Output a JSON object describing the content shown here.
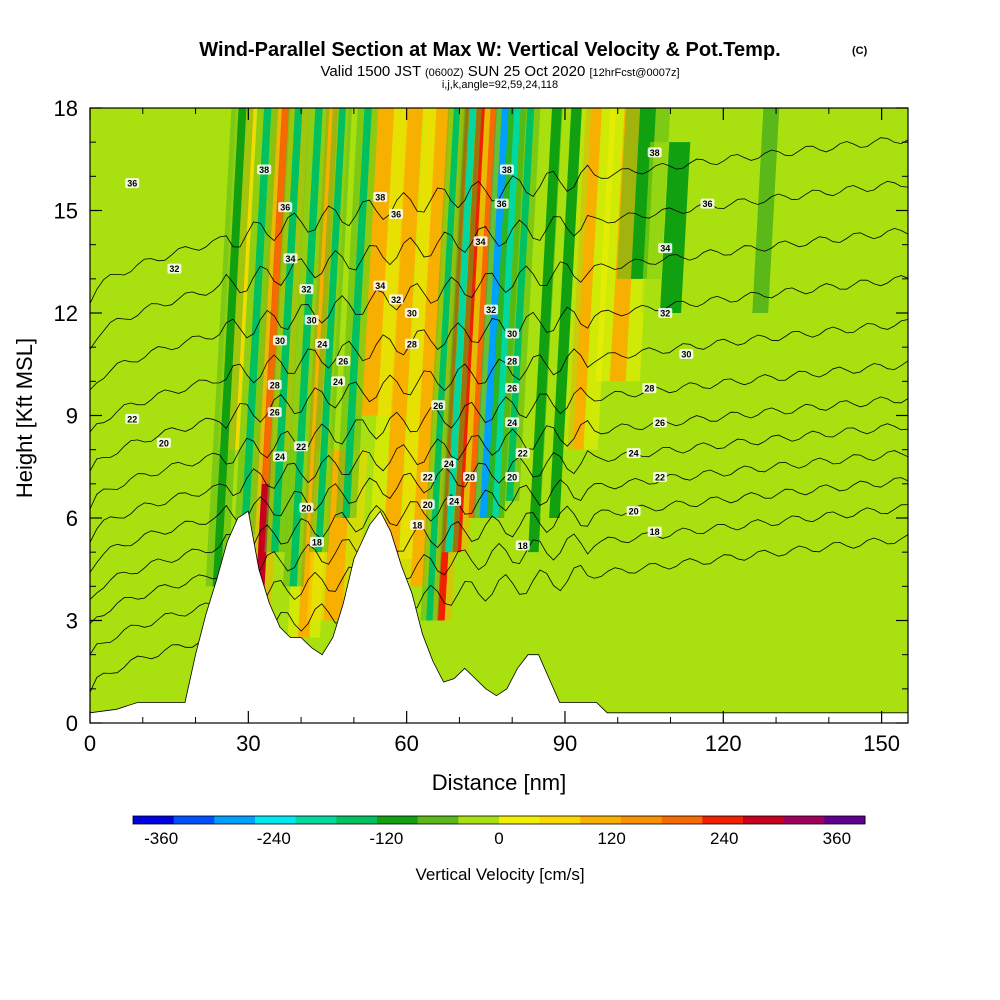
{
  "chart_data": {
    "type": "heatmap",
    "title": "Wind-Parallel Section at Max W: Vertical Velocity & Pot.Temp.",
    "title_mark": "(C)",
    "subtitle_main": "Valid 1500 JST",
    "subtitle_z": "(0600Z)",
    "subtitle_date": "SUN 25 Oct 2020",
    "subtitle_fcst": "[12hrFcst@0007z]",
    "params_line": "i,j,k,angle=92,59,24,118",
    "xlabel": "Distance [nm]",
    "ylabel": "Height [Kft MSL]",
    "xlim": [
      0,
      155
    ],
    "ylim": [
      0,
      18
    ],
    "x_ticks": [
      0,
      30,
      60,
      90,
      120,
      150
    ],
    "y_ticks": [
      0,
      3,
      6,
      9,
      12,
      15,
      18
    ],
    "colorbar": {
      "label": "Vertical Velocity [cm/s]",
      "ticks": [
        "-360",
        "-240",
        "-120",
        "0",
        "120",
        "240",
        "360"
      ],
      "tick_values": [
        -360,
        -240,
        -120,
        0,
        120,
        240,
        360
      ],
      "range": [
        -390,
        390
      ],
      "colors": [
        "#0000e0",
        "#0050ff",
        "#00a0ff",
        "#00e8f0",
        "#00d8a0",
        "#00c060",
        "#10a010",
        "#5ab818",
        "#a8e010",
        "#f0f000",
        "#f8d800",
        "#f8b000",
        "#f89000",
        "#f86a00",
        "#f02000",
        "#c80020",
        "#a00060",
        "#600090"
      ]
    },
    "terrain": [
      [
        0,
        0.3
      ],
      [
        5,
        0.4
      ],
      [
        9,
        0.6
      ],
      [
        18,
        0.6
      ],
      [
        20,
        2
      ],
      [
        22,
        3.2
      ],
      [
        24,
        4.2
      ],
      [
        26,
        5.3
      ],
      [
        28,
        6
      ],
      [
        30,
        6.2
      ],
      [
        32,
        4.5
      ],
      [
        34,
        3.5
      ],
      [
        36,
        2.8
      ],
      [
        38,
        2.5
      ],
      [
        40,
        2.5
      ],
      [
        42,
        2.2
      ],
      [
        44,
        2
      ],
      [
        46,
        2.5
      ],
      [
        48,
        3.5
      ],
      [
        50,
        4.8
      ],
      [
        53,
        5.8
      ],
      [
        55,
        6.2
      ],
      [
        57,
        5.6
      ],
      [
        59,
        4.6
      ],
      [
        61,
        3.8
      ],
      [
        63,
        2.6
      ],
      [
        65,
        1.8
      ],
      [
        67,
        1.2
      ],
      [
        69,
        1.3
      ],
      [
        71,
        1.6
      ],
      [
        73,
        1.3
      ],
      [
        75,
        1
      ],
      [
        77,
        0.8
      ],
      [
        79,
        1
      ],
      [
        81,
        1.6
      ],
      [
        83,
        2
      ],
      [
        85,
        2
      ],
      [
        87,
        1.3
      ],
      [
        89,
        0.6
      ],
      [
        96,
        0.6
      ],
      [
        98,
        0.3
      ],
      [
        155,
        0.3
      ]
    ],
    "updraft_bands": [
      {
        "x": 32,
        "w": 1.6,
        "y0": 3.2,
        "y1": 18,
        "value": 260
      },
      {
        "x": 33.2,
        "w": 1.1,
        "y0": 7,
        "y1": 18,
        "value": 200
      },
      {
        "x": 66.5,
        "w": 1.4,
        "y0": 3,
        "y1": 18,
        "value": 250
      },
      {
        "x": 69.5,
        "w": 1.6,
        "y0": 5,
        "y1": 18,
        "value": 220
      },
      {
        "x": 72.3,
        "w": 1.2,
        "y0": 6,
        "y1": 18,
        "value": 210
      },
      {
        "x": 40.5,
        "w": 2.2,
        "y0": 2.5,
        "y1": 18,
        "value": 90
      },
      {
        "x": 46,
        "w": 3.5,
        "y0": 3,
        "y1": 8,
        "value": 110
      },
      {
        "x": 57,
        "w": 3,
        "y0": 4.8,
        "y1": 18,
        "value": 90
      },
      {
        "x": 53,
        "w": 3,
        "y0": 9,
        "y1": 18,
        "value": 100
      },
      {
        "x": 62,
        "w": 2.5,
        "y0": 4,
        "y1": 18,
        "value": 110
      },
      {
        "x": 92,
        "w": 3,
        "y0": 8,
        "y1": 18,
        "value": 90
      },
      {
        "x": 100,
        "w": 3,
        "y0": 10,
        "y1": 18,
        "value": 90
      },
      {
        "x": 27,
        "w": 2,
        "y0": 8,
        "y1": 18,
        "value": 60
      },
      {
        "x": 37,
        "w": 2,
        "y0": 8,
        "y1": 18,
        "value": 60
      }
    ],
    "downdraft_bands": [
      {
        "x": 29.3,
        "w": 1.4,
        "y0": 5.5,
        "y1": 18,
        "value": -170
      },
      {
        "x": 35,
        "w": 1.4,
        "y0": 5,
        "y1": 18,
        "value": -150
      },
      {
        "x": 38.5,
        "w": 1.4,
        "y0": 4,
        "y1": 18,
        "value": -140
      },
      {
        "x": 43.3,
        "w": 1.3,
        "y0": 5,
        "y1": 18,
        "value": -150
      },
      {
        "x": 48.5,
        "w": 1.4,
        "y0": 6,
        "y1": 18,
        "value": -140
      },
      {
        "x": 64.3,
        "w": 1.2,
        "y0": 3,
        "y1": 18,
        "value": -170
      },
      {
        "x": 68,
        "w": 1.2,
        "y0": 5,
        "y1": 18,
        "value": -190
      },
      {
        "x": 74.5,
        "w": 1.3,
        "y0": 6,
        "y1": 18,
        "value": -300
      },
      {
        "x": 76.8,
        "w": 1.2,
        "y0": 6,
        "y1": 18,
        "value": -200
      },
      {
        "x": 79.5,
        "w": 1.3,
        "y0": 6.5,
        "y1": 18,
        "value": -170
      },
      {
        "x": 24,
        "w": 1.5,
        "y0": 4,
        "y1": 18,
        "value": -100
      },
      {
        "x": 84,
        "w": 2,
        "y0": 5,
        "y1": 18,
        "value": -90
      },
      {
        "x": 88,
        "w": 2,
        "y0": 6,
        "y1": 18,
        "value": -90
      },
      {
        "x": 104,
        "w": 3,
        "y0": 13,
        "y1": 18,
        "value": -100
      },
      {
        "x": 110,
        "w": 4,
        "y0": 12,
        "y1": 17,
        "value": -90
      },
      {
        "x": 127,
        "w": 3,
        "y0": 12,
        "y1": 18,
        "value": -80
      }
    ],
    "isentropes": [
      {
        "theta": 18,
        "y0": 0.9,
        "y1": 5.4
      },
      {
        "theta": 20,
        "y0": 1.9,
        "y1": 6.3
      },
      {
        "theta": 22,
        "y0": 2.8,
        "y1": 7.1
      },
      {
        "theta": 24,
        "y0": 3.6,
        "y1": 7.9
      },
      {
        "theta": 26,
        "y0": 4.5,
        "y1": 8.7
      },
      {
        "theta": 28,
        "y0": 5.4,
        "y1": 9.5
      },
      {
        "theta": 30,
        "y0": 6.3,
        "y1": 10.5
      },
      {
        "theta": 32,
        "y0": 7.3,
        "y1": 11.7
      },
      {
        "theta": 34,
        "y0": 8.4,
        "y1": 13
      },
      {
        "theta": 36,
        "y0": 9.7,
        "y1": 14.4
      },
      {
        "theta": 38,
        "y0": 11,
        "y1": 15.8
      },
      {
        "theta": 40,
        "y0": 12.4,
        "y1": 17.1
      }
    ],
    "contour_labels": [
      {
        "text": "36",
        "x": 8,
        "y": 15.8
      },
      {
        "text": "32",
        "x": 16,
        "y": 13.3
      },
      {
        "text": "22",
        "x": 8,
        "y": 8.9
      },
      {
        "text": "20",
        "x": 14,
        "y": 8.2
      },
      {
        "text": "38",
        "x": 33,
        "y": 16.2
      },
      {
        "text": "36",
        "x": 37,
        "y": 15.1
      },
      {
        "text": "34",
        "x": 38,
        "y": 13.6
      },
      {
        "text": "32",
        "x": 41,
        "y": 12.7
      },
      {
        "text": "30",
        "x": 36,
        "y": 11.2
      },
      {
        "text": "28",
        "x": 35,
        "y": 9.9
      },
      {
        "text": "26",
        "x": 35,
        "y": 9.1
      },
      {
        "text": "24",
        "x": 36,
        "y": 7.8
      },
      {
        "text": "22",
        "x": 40,
        "y": 8.1
      },
      {
        "text": "20",
        "x": 41,
        "y": 6.3
      },
      {
        "text": "18",
        "x": 43,
        "y": 5.3
      },
      {
        "text": "30",
        "x": 42,
        "y": 11.8
      },
      {
        "text": "24",
        "x": 44,
        "y": 11.1
      },
      {
        "text": "26",
        "x": 48,
        "y": 10.6
      },
      {
        "text": "24",
        "x": 47,
        "y": 10.0
      },
      {
        "text": "38",
        "x": 55,
        "y": 15.4
      },
      {
        "text": "34",
        "x": 55,
        "y": 12.8
      },
      {
        "text": "36",
        "x": 58,
        "y": 14.9
      },
      {
        "text": "32",
        "x": 58,
        "y": 12.4
      },
      {
        "text": "30",
        "x": 61,
        "y": 12.0
      },
      {
        "text": "28",
        "x": 61,
        "y": 11.1
      },
      {
        "text": "26",
        "x": 66,
        "y": 9.3
      },
      {
        "text": "22",
        "x": 64,
        "y": 7.2
      },
      {
        "text": "20",
        "x": 64,
        "y": 6.4
      },
      {
        "text": "18",
        "x": 62,
        "y": 5.8
      },
      {
        "text": "24",
        "x": 68,
        "y": 7.6
      },
      {
        "text": "24",
        "x": 69,
        "y": 6.5
      },
      {
        "text": "20",
        "x": 72,
        "y": 7.2
      },
      {
        "text": "34",
        "x": 74,
        "y": 14.1
      },
      {
        "text": "32",
        "x": 76,
        "y": 12.1
      },
      {
        "text": "38",
        "x": 79,
        "y": 16.2
      },
      {
        "text": "36",
        "x": 78,
        "y": 15.2
      },
      {
        "text": "30",
        "x": 80,
        "y": 11.4
      },
      {
        "text": "28",
        "x": 80,
        "y": 10.6
      },
      {
        "text": "26",
        "x": 80,
        "y": 9.8
      },
      {
        "text": "24",
        "x": 80,
        "y": 8.8
      },
      {
        "text": "22",
        "x": 82,
        "y": 7.9
      },
      {
        "text": "20",
        "x": 80,
        "y": 7.2
      },
      {
        "text": "18",
        "x": 82,
        "y": 5.2
      },
      {
        "text": "38",
        "x": 107,
        "y": 16.7
      },
      {
        "text": "36",
        "x": 117,
        "y": 15.2
      },
      {
        "text": "34",
        "x": 109,
        "y": 13.9
      },
      {
        "text": "32",
        "x": 109,
        "y": 12.0
      },
      {
        "text": "30",
        "x": 113,
        "y": 10.8
      },
      {
        "text": "28",
        "x": 106,
        "y": 9.8
      },
      {
        "text": "26",
        "x": 108,
        "y": 8.8
      },
      {
        "text": "24",
        "x": 103,
        "y": 7.9
      },
      {
        "text": "22",
        "x": 108,
        "y": 7.2
      },
      {
        "text": "20",
        "x": 103,
        "y": 6.2
      },
      {
        "text": "18",
        "x": 107,
        "y": 5.6
      }
    ]
  }
}
